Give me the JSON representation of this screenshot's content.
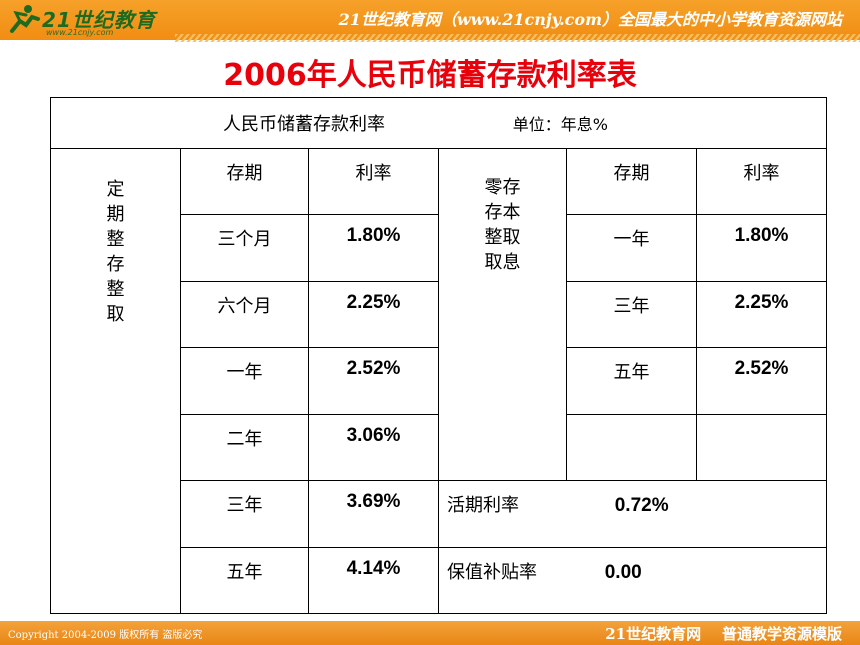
{
  "header": {
    "logo_text": "21世纪教育",
    "logo_url": "www.21cnjy.com",
    "slogan": "21世纪教育网（www.21cnjy.com）全国最大的中小学教育资源网站"
  },
  "title": "2006年人民币储蓄存款利率表",
  "table": {
    "caption": "人民币储蓄存款利率",
    "unit": "单位：年息%",
    "group1_label": "定期整存整取",
    "group2_label": "零存存本整取取息",
    "col_term": "存期",
    "col_rate": "利率",
    "left_rows": [
      {
        "term": "三个月",
        "rate": "1.80%"
      },
      {
        "term": "六个月",
        "rate": "2.25%"
      },
      {
        "term": "一年",
        "rate": "2.52%"
      },
      {
        "term": "二年",
        "rate": "3.06%"
      },
      {
        "term": "三年",
        "rate": "3.69%"
      },
      {
        "term": "五年",
        "rate": "4.14%"
      }
    ],
    "right_rows": [
      {
        "term": "一年",
        "rate": "1.80%"
      },
      {
        "term": "三年",
        "rate": "2.25%"
      },
      {
        "term": "五年",
        "rate": "2.52%"
      }
    ],
    "current_label": "活期利率",
    "current_rate": "0.72%",
    "subsidy_label": "保值补贴率",
    "subsidy_rate": "0.00"
  },
  "footer": {
    "copyright": "Copyright 2004-2009 版权所有 盗版必究",
    "brand": "21世纪教育网    普通教学资源模版"
  },
  "colors": {
    "title_red": "#e8000b",
    "bar_orange": "#f18d12"
  }
}
